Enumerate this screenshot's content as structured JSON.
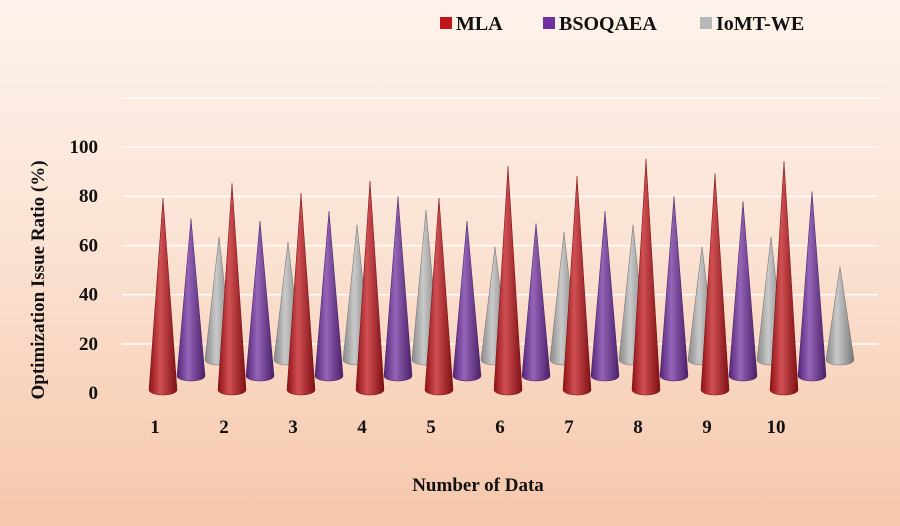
{
  "chart_data": {
    "type": "bar",
    "style": "3d-cone",
    "categories": [
      "1",
      "2",
      "3",
      "4",
      "5",
      "6",
      "7",
      "8",
      "9",
      "10"
    ],
    "series": [
      {
        "name": "MLA",
        "color": "#c0161b",
        "values": [
          78,
          84,
          80,
          85,
          78,
          91,
          87,
          94,
          88,
          93
        ]
      },
      {
        "name": "BSOQAEA",
        "color": "#7030a0",
        "values": [
          64,
          63,
          67,
          73,
          63,
          62,
          67,
          73,
          71,
          75
        ]
      },
      {
        "name": "IoMT-WE",
        "color": "#b7b7b7",
        "values": [
          50,
          48,
          55,
          61,
          46,
          52,
          55,
          46,
          50,
          38
        ]
      }
    ],
    "title": "",
    "xlabel": "Number of Data",
    "ylabel": "Optimization Issue Ratio (%)",
    "ylim": [
      0,
      100
    ],
    "yticks": [
      "0",
      "20",
      "40",
      "60",
      "80",
      "100"
    ],
    "grid": true,
    "legend": "top-right"
  }
}
